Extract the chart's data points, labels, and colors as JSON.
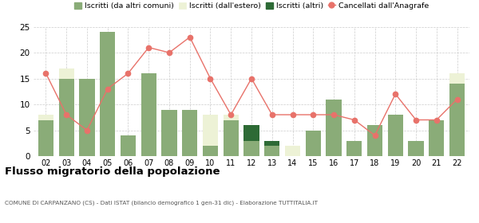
{
  "years": [
    "02",
    "03",
    "04",
    "05",
    "06",
    "07",
    "08",
    "09",
    "10",
    "11",
    "12",
    "13",
    "14",
    "15",
    "16",
    "17",
    "18",
    "19",
    "20",
    "21",
    "22"
  ],
  "iscritti_comuni": [
    7,
    15,
    15,
    24,
    4,
    16,
    9,
    9,
    2,
    7,
    3,
    2,
    0,
    5,
    11,
    3,
    6,
    8,
    3,
    7,
    14
  ],
  "iscritti_estero": [
    1,
    2,
    0,
    0,
    0,
    0,
    0,
    0,
    6,
    1,
    0,
    0,
    2,
    0,
    0,
    0,
    0,
    0,
    0,
    0,
    2
  ],
  "iscritti_altri": [
    0,
    0,
    0,
    0,
    0,
    0,
    0,
    0,
    0,
    0,
    3,
    1,
    0,
    0,
    0,
    0,
    0,
    0,
    0,
    0,
    0
  ],
  "cancellati": [
    16,
    8,
    5,
    13,
    16,
    21,
    20,
    23,
    15,
    8,
    15,
    8,
    8,
    8,
    8,
    7,
    4,
    12,
    7,
    7,
    11
  ],
  "color_comuni": "#8aac78",
  "color_estero": "#edf2d6",
  "color_altri": "#2d6a35",
  "color_cancellati": "#e8726a",
  "bg_color": "#ffffff",
  "grid_color": "#cccccc",
  "title": "Flusso migratorio della popolazione",
  "subtitle": "COMUNE DI CARPANZANO (CS) - Dati ISTAT (bilancio demografico 1 gen-31 dic) - Elaborazione TUTTITALIA.IT",
  "ylim": [
    0,
    25
  ],
  "yticks": [
    0,
    5,
    10,
    15,
    20,
    25
  ],
  "legend_labels": [
    "Iscritti (da altri comuni)",
    "Iscritti (dall'estero)",
    "Iscritti (altri)",
    "Cancellati dall'Anagrafe"
  ]
}
